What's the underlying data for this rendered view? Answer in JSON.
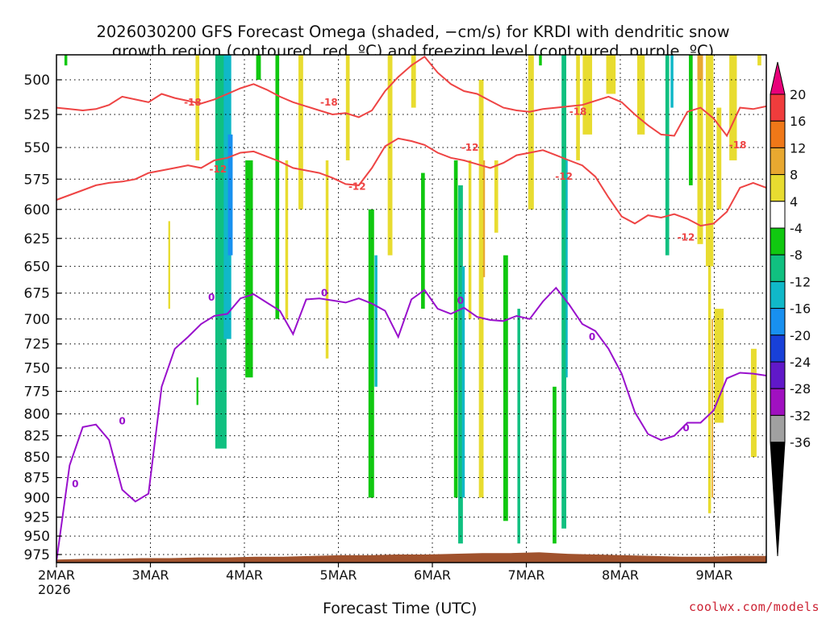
{
  "chart_data": {
    "type": "heatmap",
    "title_line1": "2026030200 GFS Forecast Omega (shaded, −cm/s) for KRDI with dendritic snow",
    "title_line2": "growth region (contoured, red, ºC) and freezing level (contoured, purple, ºC)",
    "xlabel": "Forecast Time (UTC)",
    "x_year_label": "2026",
    "x_ticks": [
      "2MAR",
      "3MAR",
      "4MAR",
      "5MAR",
      "6MAR",
      "7MAR",
      "8MAR",
      "9MAR"
    ],
    "x_range_days": [
      0,
      7.5
    ],
    "y_ticks": [
      500,
      525,
      550,
      575,
      600,
      625,
      650,
      675,
      700,
      725,
      750,
      775,
      800,
      825,
      850,
      875,
      900,
      925,
      950,
      975
    ],
    "y_range_hPa": [
      470,
      985
    ],
    "y_scale": "log-pressure",
    "grid": true,
    "colorbar": {
      "labels": [
        "20",
        "16",
        "12",
        "8",
        "4",
        "-4",
        "-8",
        "-12",
        "-16",
        "-20",
        "-24",
        "-28",
        "-32",
        "-36"
      ],
      "colors": [
        "#e8007a",
        "#f03c3c",
        "#f07818",
        "#e8a830",
        "#e8dc30",
        "#ffffff",
        "#10c810",
        "#10c080",
        "#10b8c8",
        "#1890f0",
        "#1840d8",
        "#6018c8",
        "#a010c0",
        "#a0a0a0",
        "#000000"
      ]
    },
    "contours": {
      "red_label_values": [
        "-18",
        "-12"
      ],
      "purple_label_values": [
        "0"
      ],
      "red_color": "#ee4444",
      "purple_color": "#9910cc",
      "minus18_hPa": [
        520,
        521,
        522,
        521,
        518,
        512,
        514,
        516,
        510,
        513,
        515,
        517,
        514,
        510,
        506,
        503,
        507,
        512,
        516,
        519,
        522,
        525,
        524,
        527,
        522,
        508,
        498,
        490,
        484,
        495,
        503,
        508,
        510,
        515,
        520,
        522,
        523,
        521,
        520,
        519,
        518,
        515,
        512,
        516,
        525,
        533,
        540,
        541,
        523,
        520,
        528,
        541,
        520,
        521,
        519
      ],
      "minus12_hPa": [
        592,
        588,
        584,
        580,
        578,
        577,
        575,
        570,
        568,
        566,
        564,
        566,
        560,
        558,
        554,
        553,
        557,
        561,
        566,
        568,
        570,
        574,
        579,
        580,
        566,
        549,
        543,
        545,
        548,
        554,
        558,
        560,
        563,
        566,
        562,
        556,
        554,
        552,
        556,
        560,
        564,
        573,
        590,
        606,
        612,
        605,
        607,
        604,
        608,
        614,
        612,
        602,
        582,
        578,
        582
      ],
      "zero_hPa": [
        984,
        860,
        815,
        812,
        830,
        890,
        905,
        895,
        770,
        730,
        718,
        705,
        697,
        695,
        680,
        676,
        684,
        692,
        715,
        681,
        680,
        682,
        684,
        680,
        685,
        692,
        718,
        681,
        672,
        690,
        695,
        689,
        698,
        701,
        702,
        697,
        700,
        683,
        670,
        686,
        705,
        712,
        730,
        756,
        798,
        823,
        830,
        825,
        810,
        810,
        796,
        761,
        755,
        756,
        758
      ]
    },
    "terrain": {
      "color": "#a0522d",
      "surface_hPa": [
        982,
        981,
        981,
        980,
        980,
        979,
        979,
        978,
        978,
        977,
        976,
        976,
        975,
        975,
        974,
        973,
        973,
        972,
        974,
        975,
        976,
        977,
        978,
        978,
        977,
        977
      ]
    },
    "omega_shading": [
      {
        "day": 1.75,
        "width": 0.12,
        "top": 470,
        "bottom": 840,
        "value": -9
      },
      {
        "day": 1.82,
        "width": 0.08,
        "top": 470,
        "bottom": 720,
        "value": -13
      },
      {
        "day": 1.85,
        "width": 0.05,
        "top": 540,
        "bottom": 640,
        "value": -17
      },
      {
        "day": 2.05,
        "width": 0.08,
        "top": 560,
        "bottom": 760,
        "value": -6
      },
      {
        "day": 2.35,
        "width": 0.04,
        "top": 470,
        "bottom": 700,
        "value": -6
      },
      {
        "day": 1.5,
        "width": 0.02,
        "top": 760,
        "bottom": 790,
        "value": -6
      },
      {
        "day": 3.35,
        "width": 0.06,
        "top": 600,
        "bottom": 900,
        "value": -7
      },
      {
        "day": 3.4,
        "width": 0.03,
        "top": 640,
        "bottom": 770,
        "value": -12
      },
      {
        "day": 3.9,
        "width": 0.04,
        "top": 570,
        "bottom": 690,
        "value": -6
      },
      {
        "day": 4.25,
        "width": 0.04,
        "top": 560,
        "bottom": 900,
        "value": -6
      },
      {
        "day": 4.3,
        "width": 0.05,
        "top": 580,
        "bottom": 960,
        "value": -10
      },
      {
        "day": 4.33,
        "width": 0.03,
        "top": 650,
        "bottom": 900,
        "value": -14
      },
      {
        "day": 4.78,
        "width": 0.05,
        "top": 640,
        "bottom": 930,
        "value": -6
      },
      {
        "day": 4.92,
        "width": 0.03,
        "top": 690,
        "bottom": 960,
        "value": -9
      },
      {
        "day": 5.3,
        "width": 0.04,
        "top": 770,
        "bottom": 960,
        "value": -6
      },
      {
        "day": 5.4,
        "width": 0.05,
        "top": 470,
        "bottom": 940,
        "value": -8
      },
      {
        "day": 5.43,
        "width": 0.02,
        "top": 560,
        "bottom": 760,
        "value": -12
      },
      {
        "day": 6.5,
        "width": 0.04,
        "top": 470,
        "bottom": 640,
        "value": -8
      },
      {
        "day": 6.55,
        "width": 0.03,
        "top": 470,
        "bottom": 520,
        "value": -12
      },
      {
        "day": 6.75,
        "width": 0.04,
        "top": 470,
        "bottom": 580,
        "value": -6
      },
      {
        "day": 5.15,
        "width": 0.03,
        "top": 470,
        "bottom": 490,
        "value": -6
      },
      {
        "day": 0.1,
        "width": 0.03,
        "top": 480,
        "bottom": 490,
        "value": -6
      },
      {
        "day": 2.15,
        "width": 0.05,
        "top": 470,
        "bottom": 500,
        "value": -6
      },
      {
        "day": 1.2,
        "width": 0.02,
        "top": 610,
        "bottom": 690,
        "value": 6
      },
      {
        "day": 1.5,
        "width": 0.04,
        "top": 470,
        "bottom": 560,
        "value": 5
      },
      {
        "day": 2.6,
        "width": 0.05,
        "top": 470,
        "bottom": 600,
        "value": 5
      },
      {
        "day": 2.45,
        "width": 0.03,
        "top": 560,
        "bottom": 700,
        "value": 5
      },
      {
        "day": 2.88,
        "width": 0.03,
        "top": 560,
        "bottom": 740,
        "value": 5
      },
      {
        "day": 3.1,
        "width": 0.04,
        "top": 470,
        "bottom": 560,
        "value": 5
      },
      {
        "day": 3.55,
        "width": 0.05,
        "top": 470,
        "bottom": 640,
        "value": 5
      },
      {
        "day": 3.8,
        "width": 0.05,
        "top": 470,
        "bottom": 520,
        "value": 5
      },
      {
        "day": 4.4,
        "width": 0.03,
        "top": 560,
        "bottom": 700,
        "value": 5
      },
      {
        "day": 4.52,
        "width": 0.05,
        "top": 500,
        "bottom": 900,
        "value": 6
      },
      {
        "day": 4.55,
        "width": 0.02,
        "top": 560,
        "bottom": 660,
        "value": 11
      },
      {
        "day": 4.68,
        "width": 0.04,
        "top": 560,
        "bottom": 620,
        "value": 6
      },
      {
        "day": 5.05,
        "width": 0.06,
        "top": 470,
        "bottom": 600,
        "value": 5
      },
      {
        "day": 5.55,
        "width": 0.04,
        "top": 470,
        "bottom": 560,
        "value": 5
      },
      {
        "day": 5.65,
        "width": 0.1,
        "top": 470,
        "bottom": 540,
        "value": 5
      },
      {
        "day": 5.9,
        "width": 0.1,
        "top": 470,
        "bottom": 510,
        "value": 7
      },
      {
        "day": 6.22,
        "width": 0.08,
        "top": 470,
        "bottom": 540,
        "value": 5
      },
      {
        "day": 6.95,
        "width": 0.08,
        "top": 470,
        "bottom": 650,
        "value": 5
      },
      {
        "day": 6.85,
        "width": 0.06,
        "top": 470,
        "bottom": 630,
        "value": 5
      },
      {
        "day": 7.2,
        "width": 0.08,
        "top": 470,
        "bottom": 560,
        "value": 5
      },
      {
        "day": 7.05,
        "width": 0.05,
        "top": 520,
        "bottom": 600,
        "value": 5
      },
      {
        "day": 7.48,
        "width": 0.04,
        "top": 470,
        "bottom": 490,
        "value": 5
      },
      {
        "day": 7.05,
        "width": 0.1,
        "top": 690,
        "bottom": 810,
        "value": 5
      },
      {
        "day": 7.42,
        "width": 0.06,
        "top": 730,
        "bottom": 850,
        "value": 5
      },
      {
        "day": 6.85,
        "width": 0.06,
        "top": 470,
        "bottom": 500,
        "value": 11
      },
      {
        "day": 6.95,
        "width": 0.03,
        "top": 650,
        "bottom": 920,
        "value": 7
      },
      {
        "day": 6.98,
        "width": 0.015,
        "top": 700,
        "bottom": 900,
        "value": 11
      }
    ]
  },
  "credit": "coolwx.com/models"
}
